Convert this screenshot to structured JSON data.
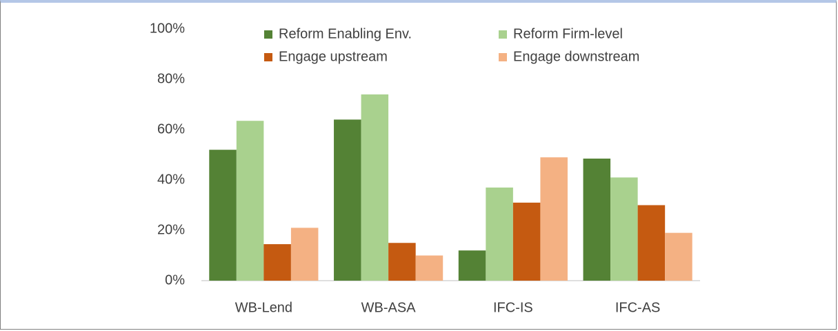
{
  "chart_data": {
    "type": "bar",
    "categories": [
      "WB-Lend",
      "WB-ASA",
      "IFC-IS",
      "IFC-AS"
    ],
    "series": [
      {
        "name": "Reform Enabling Env.",
        "color": "#548235",
        "values": [
          52,
          64,
          12,
          48.5
        ]
      },
      {
        "name": "Reform Firm-level",
        "color": "#a9d18e",
        "values": [
          63.5,
          74,
          37,
          41
        ]
      },
      {
        "name": "Engage upstream",
        "color": "#c55a11",
        "values": [
          14.5,
          15,
          31,
          30
        ]
      },
      {
        "name": "Engage downstream",
        "color": "#f4b183",
        "values": [
          21,
          10,
          49,
          19
        ]
      }
    ],
    "ylim": [
      0,
      100
    ],
    "yticks": [
      {
        "value": 0,
        "label": "0%"
      },
      {
        "value": 20,
        "label": "20%"
      },
      {
        "value": 40,
        "label": "40%"
      },
      {
        "value": 60,
        "label": "60%"
      },
      {
        "value": 80,
        "label": "80%"
      },
      {
        "value": 100,
        "label": "100%"
      }
    ],
    "grid": false,
    "legend": "top"
  }
}
